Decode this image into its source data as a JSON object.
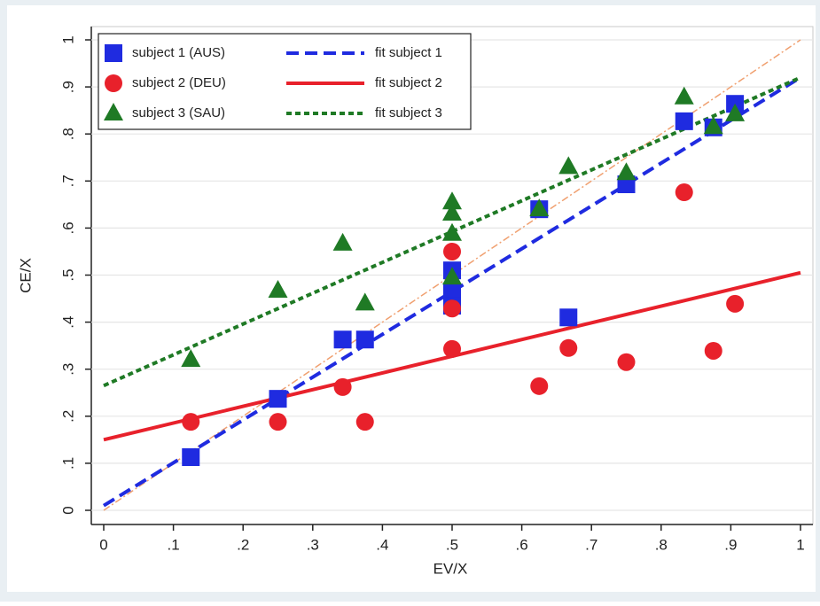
{
  "chart_data": {
    "type": "scatter",
    "x_label": "EV/X",
    "y_label": "CE/X",
    "xlim": [
      0,
      1
    ],
    "ylim": [
      0,
      1
    ],
    "xticks": [
      0,
      {
        "value": 0.1,
        "label": ".1"
      },
      {
        "value": 0.2,
        "label": ".2"
      },
      {
        "value": 0.3,
        "label": ".3"
      },
      {
        "value": 0.4,
        "label": ".4"
      },
      {
        "value": 0.5,
        "label": ".5"
      },
      {
        "value": 0.6,
        "label": ".6"
      },
      {
        "value": 0.7,
        "label": ".7"
      },
      {
        "value": 0.8,
        "label": ".8"
      },
      {
        "value": 0.9,
        "label": ".9"
      },
      1
    ],
    "yticks": [
      0,
      {
        "value": 0.1,
        "label": ".1"
      },
      {
        "value": 0.2,
        "label": ".2"
      },
      {
        "value": 0.3,
        "label": ".3"
      },
      {
        "value": 0.4,
        "label": ".4"
      },
      {
        "value": 0.5,
        "label": ".5"
      },
      {
        "value": 0.6,
        "label": ".6"
      },
      {
        "value": 0.7,
        "label": ".7"
      },
      {
        "value": 0.8,
        "label": ".8"
      },
      {
        "value": 0.9,
        "label": ".9"
      },
      1
    ],
    "grid": true,
    "legend_position": "upper-left",
    "series": [
      {
        "name": "subject 1 (AUS)",
        "marker": "square",
        "color": "#1f2be0",
        "x": [
          0.125,
          0.25,
          0.343,
          0.375,
          0.5,
          0.5,
          0.5,
          0.625,
          0.667,
          0.75,
          0.833,
          0.875,
          0.906
        ],
        "values": [
          0.113,
          0.237,
          0.363,
          0.363,
          0.51,
          0.463,
          0.435,
          0.64,
          0.41,
          0.693,
          0.827,
          0.814,
          0.864
        ]
      },
      {
        "name": "subject 2 (DEU)",
        "marker": "circle",
        "color": "#e8212b",
        "x": [
          0.125,
          0.25,
          0.343,
          0.375,
          0.5,
          0.5,
          0.5,
          0.625,
          0.667,
          0.75,
          0.833,
          0.875,
          0.906
        ],
        "values": [
          0.188,
          0.188,
          0.262,
          0.188,
          0.55,
          0.429,
          0.343,
          0.264,
          0.345,
          0.315,
          0.676,
          0.339,
          0.439
        ]
      },
      {
        "name": "subject 3 (SAU)",
        "marker": "triangle",
        "color": "#1f7a25",
        "x": [
          0.125,
          0.25,
          0.343,
          0.375,
          0.5,
          0.5,
          0.5,
          0.5,
          0.625,
          0.667,
          0.75,
          0.833,
          0.875,
          0.906
        ],
        "values": [
          0.32,
          0.467,
          0.567,
          0.44,
          0.655,
          0.631,
          0.588,
          0.495,
          0.64,
          0.73,
          0.717,
          0.878,
          0.815,
          0.842
        ]
      },
      {
        "name": "fit subject 1",
        "type": "line",
        "dash": "14 7",
        "color": "#1f2be0",
        "x": [
          0,
          1
        ],
        "values": [
          0.01,
          0.92
        ]
      },
      {
        "name": "fit subject 2",
        "type": "line",
        "dash": "none",
        "color": "#e8212b",
        "x": [
          0,
          1
        ],
        "values": [
          0.15,
          0.505
        ]
      },
      {
        "name": "fit subject 3",
        "type": "line",
        "dash": "6 4",
        "color": "#1f7a25",
        "x": [
          0,
          1
        ],
        "values": [
          0.265,
          0.92
        ]
      }
    ],
    "reference_line": {
      "x": [
        0,
        1
      ],
      "values": [
        0,
        1
      ],
      "color": "#f0a070"
    }
  }
}
